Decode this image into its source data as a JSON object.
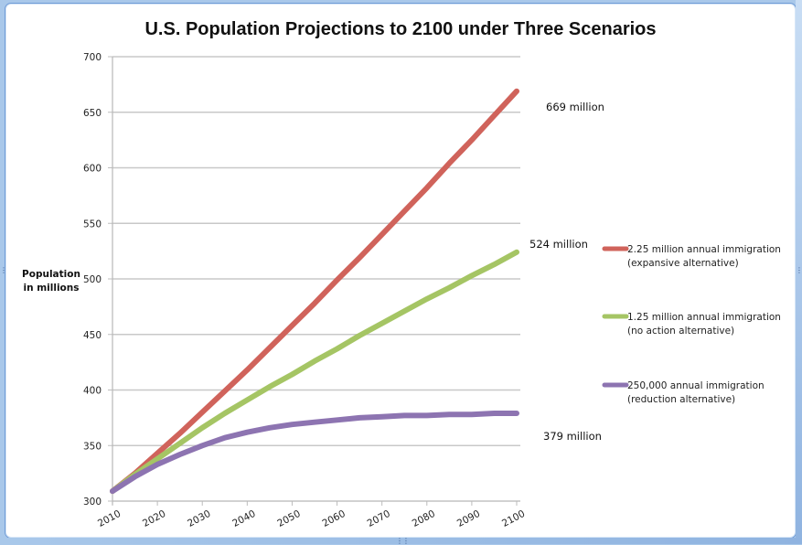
{
  "chart_data": {
    "type": "line",
    "title": "U.S. Population Projections to 2100 under Three Scenarios",
    "xlabel": "",
    "ylabel": "Population in millions",
    "ylabel_lines": [
      "Population",
      "in millions"
    ],
    "xlim": [
      2010,
      2100
    ],
    "ylim": [
      300,
      700
    ],
    "xticks": [
      2010,
      2020,
      2030,
      2040,
      2050,
      2060,
      2070,
      2080,
      2090,
      2100
    ],
    "yticks": [
      300,
      350,
      400,
      450,
      500,
      550,
      600,
      650,
      700
    ],
    "grid": true,
    "legend_position": "right",
    "x": [
      2010,
      2015,
      2020,
      2025,
      2030,
      2035,
      2040,
      2045,
      2050,
      2055,
      2060,
      2065,
      2070,
      2075,
      2080,
      2085,
      2090,
      2095,
      2100
    ],
    "series": [
      {
        "name": "2.25 million annual immigration (expansive alternative)",
        "legend_lines": [
          "2.25 million annual immigration",
          "(expansive alternative)"
        ],
        "color": "#d0635b",
        "values": [
          309,
          325,
          343,
          361,
          380,
          399,
          418,
          438,
          458,
          478,
          499,
          519,
          540,
          561,
          582,
          604,
          625,
          647,
          669
        ]
      },
      {
        "name": "1.25 million annual immigration (no action alternative)",
        "legend_lines": [
          "1.25 million annual immigration",
          "(no action alternative)"
        ],
        "color": "#a5c564",
        "values": [
          309,
          324,
          338,
          352,
          366,
          379,
          391,
          403,
          414,
          426,
          437,
          449,
          460,
          471,
          482,
          492,
          503,
          513,
          524
        ]
      },
      {
        "name": "250,000 annual immigration (reduction alternative)",
        "legend_lines": [
          "250,000 annual immigration",
          "(reduction alternative)"
        ],
        "color": "#8d74b1",
        "values": [
          309,
          322,
          333,
          342,
          350,
          357,
          362,
          366,
          369,
          371,
          373,
          375,
          376,
          377,
          377,
          378,
          378,
          379,
          379
        ]
      }
    ],
    "annotations": [
      {
        "text": "669 million",
        "series": 0
      },
      {
        "text": "524 million",
        "series": 1
      },
      {
        "text": "379 million",
        "series": 2
      }
    ]
  }
}
